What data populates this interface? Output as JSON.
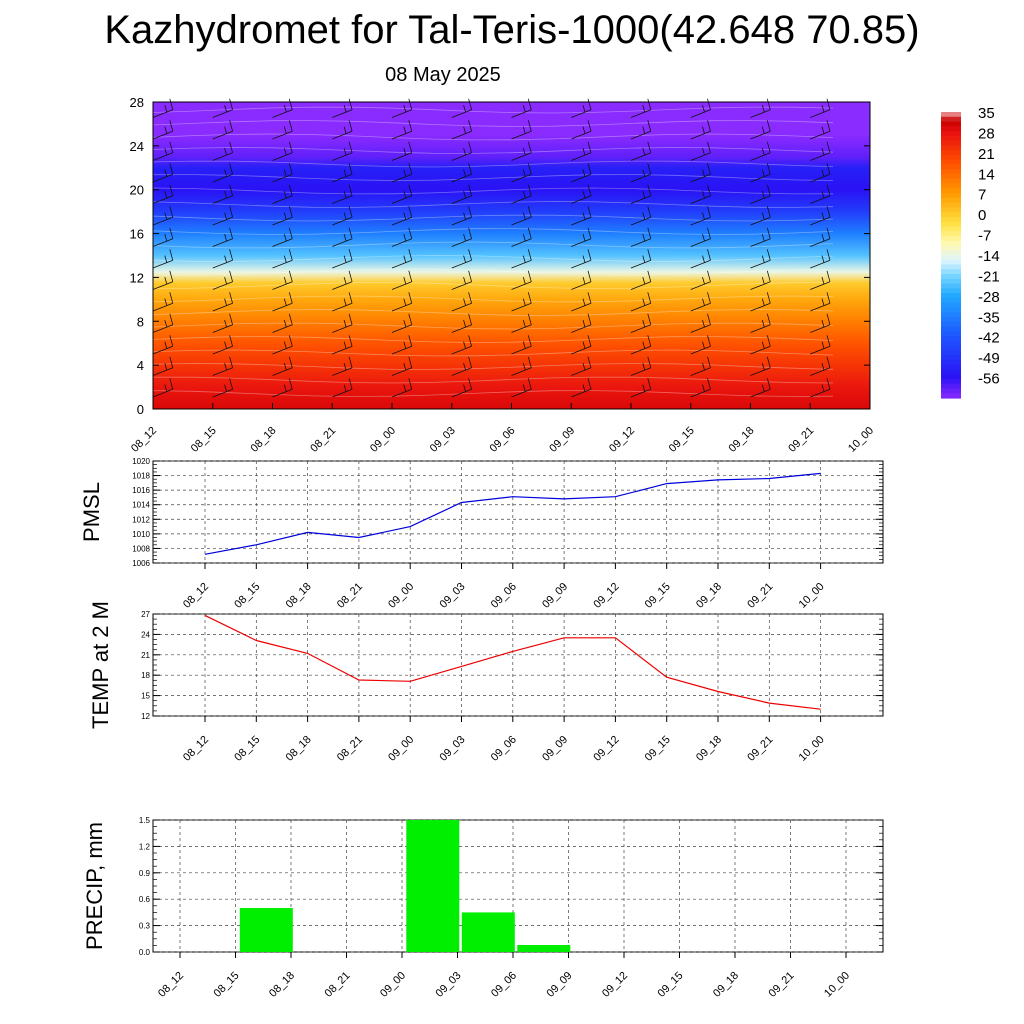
{
  "title": "Kazhydromet for Tal-Teris-1000(42.648 70.85)",
  "subtitle": "08 May 2025",
  "chart_data": [
    {
      "type": "heatmap",
      "title": "",
      "y_ticks": [
        "0",
        "4",
        "8",
        "12",
        "16",
        "20",
        "24",
        "28"
      ],
      "ylim": [
        0,
        28
      ],
      "x_ticks": [
        "08_12",
        "08_15",
        "08_18",
        "08_21",
        "09_00",
        "09_03",
        "09_06",
        "09_09",
        "09_12",
        "09_15",
        "09_18",
        "09_21",
        "10_00"
      ],
      "value_by_level": {
        "levels": [
          0,
          2,
          4,
          6,
          8,
          10,
          11.5,
          12.5,
          14,
          16,
          18,
          20,
          22,
          23,
          25,
          28
        ],
        "values": [
          30,
          27,
          22,
          17,
          11,
          5,
          0,
          -14,
          -24,
          -35,
          -47,
          -56,
          -53,
          -60,
          -63,
          -64
        ]
      },
      "colorbar": {
        "labels": [
          "35",
          "28",
          "21",
          "14",
          "7",
          "0",
          "-7",
          "-14",
          "-21",
          "-28",
          "-35",
          "-42",
          "-49",
          "-56"
        ],
        "range": [
          -63,
          35
        ]
      },
      "overlay": "wind barbs and contour lines"
    },
    {
      "type": "line",
      "ylabel": "PMSL",
      "ylim": [
        1006,
        1020
      ],
      "y_ticks": [
        "1006",
        "1008",
        "1010",
        "1012",
        "1014",
        "1016",
        "1018",
        "1020"
      ],
      "x": [
        "08_12",
        "08_15",
        "08_18",
        "08_21",
        "09_00",
        "09_03",
        "09_06",
        "09_09",
        "09_12",
        "09_15",
        "09_18",
        "09_21",
        "10_00"
      ],
      "series": [
        {
          "values": [
            1007.2,
            1008.5,
            1010.2,
            1009.5,
            1011.0,
            1014.3,
            1015.1,
            1014.8,
            1015.1,
            1016.9,
            1017.4,
            1017.6,
            1018.3
          ],
          "color": "#0000dd"
        }
      ]
    },
    {
      "type": "line",
      "ylabel": "TEMP at 2 M",
      "ylim": [
        12,
        27
      ],
      "y_ticks": [
        "12",
        "15",
        "18",
        "21",
        "24",
        "27"
      ],
      "x": [
        "08_12",
        "08_15",
        "08_18",
        "08_21",
        "09_00",
        "09_03",
        "09_06",
        "09_09",
        "09_12",
        "09_15",
        "09_18",
        "09_21",
        "10_00"
      ],
      "series": [
        {
          "values": [
            26.8,
            23.1,
            21.2,
            17.3,
            17.1,
            19.3,
            21.5,
            23.5,
            23.5,
            17.7,
            15.6,
            13.9,
            13.0
          ],
          "color": "#ee0000"
        }
      ]
    },
    {
      "type": "bar",
      "ylabel": "PRECIP, mm",
      "ylim": [
        0,
        1.5
      ],
      "y_ticks": [
        "0.0",
        "0.3",
        "0.6",
        "0.9",
        "1.2",
        "1.5"
      ],
      "categories": [
        "08_12",
        "08_15",
        "08_18",
        "08_21",
        "09_00",
        "09_03",
        "09_06",
        "09_09",
        "09_12",
        "09_15",
        "09_18",
        "09_21",
        "10_00"
      ],
      "values": [
        0,
        0,
        0.5,
        0,
        0,
        1.5,
        0.45,
        0.08,
        0,
        0,
        0,
        0,
        0
      ],
      "color": "#00ee00"
    }
  ]
}
